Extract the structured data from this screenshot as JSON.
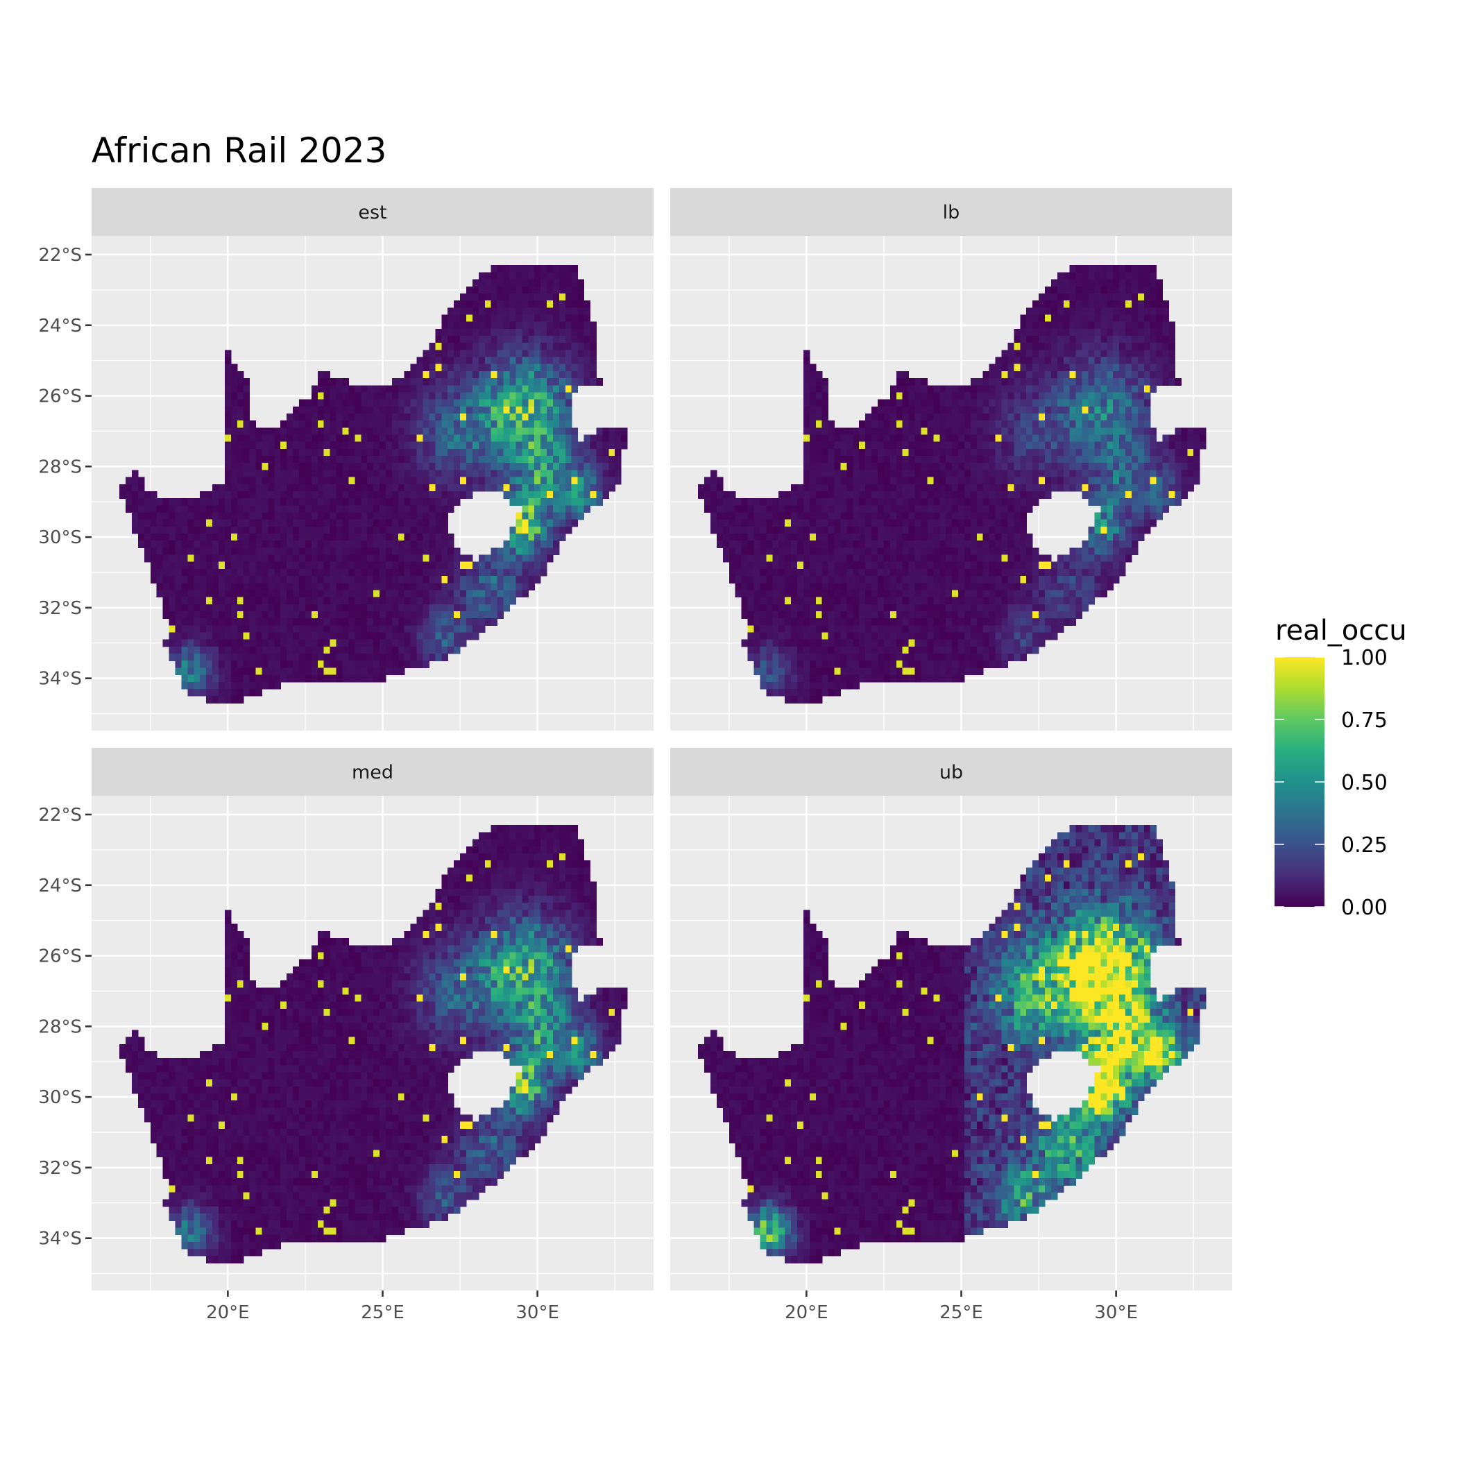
{
  "chart_data": {
    "type": "heatmap",
    "title": "African Rail 2023",
    "xlabel": "",
    "ylabel": "",
    "xlim": [
      15.6,
      33.75
    ],
    "ylim": [
      -35.48,
      -21.47
    ],
    "x_ticks": [
      {
        "value": 20,
        "label": "20°E"
      },
      {
        "value": 25,
        "label": "25°E"
      },
      {
        "value": 30,
        "label": "30°E"
      }
    ],
    "y_ticks": [
      {
        "value": -22,
        "label": "22°S"
      },
      {
        "value": -24,
        "label": "24°S"
      },
      {
        "value": -26,
        "label": "26°S"
      },
      {
        "value": -28,
        "label": "28°S"
      },
      {
        "value": -30,
        "label": "30°S"
      },
      {
        "value": -32,
        "label": "32°S"
      },
      {
        "value": -34,
        "label": "34°S"
      }
    ],
    "grid": true,
    "legend": {
      "title": "real_occu",
      "placement": "right",
      "colormap": "viridis",
      "range": [
        0,
        1
      ],
      "ticks": [
        {
          "value": 1,
          "label": "1.00"
        },
        {
          "value": 0.75,
          "label": "0.75"
        },
        {
          "value": 0.5,
          "label": "0.50"
        },
        {
          "value": 0.25,
          "label": "0.25"
        },
        {
          "value": 0,
          "label": "0.00"
        }
      ]
    },
    "panels": [
      {
        "label": "est",
        "multiplier": 0.85
      },
      {
        "label": "lb",
        "multiplier": 0.5
      },
      {
        "label": "med",
        "multiplier": 0.8
      },
      {
        "label": "ub",
        "multiplier": 1.5
      }
    ],
    "hotspots": [
      {
        "lon": 29.6,
        "lat": -26.4,
        "radius": 1.4,
        "value": 0.75
      },
      {
        "lon": 29.5,
        "lat": -29.7,
        "radius": 0.8,
        "value": 0.85
      },
      {
        "lon": 30.3,
        "lat": -28.3,
        "radius": 1.0,
        "value": 0.55
      },
      {
        "lon": 27.5,
        "lat": -27.0,
        "radius": 1.3,
        "value": 0.35
      },
      {
        "lon": 28.5,
        "lat": -31.5,
        "radius": 1.0,
        "value": 0.35
      },
      {
        "lon": 18.8,
        "lat": -33.8,
        "radius": 0.7,
        "value": 0.45
      },
      {
        "lon": 27.0,
        "lat": -32.8,
        "radius": 0.8,
        "value": 0.3
      },
      {
        "lon": 31.5,
        "lat": -28.8,
        "radius": 0.7,
        "value": 0.4
      }
    ],
    "colors": {
      "panel_bg": "#EBEBEB",
      "strip_bg": "#D9D9D9",
      "grid": "#FFFFFF",
      "low": "#440154",
      "high": "#FDE725"
    }
  }
}
